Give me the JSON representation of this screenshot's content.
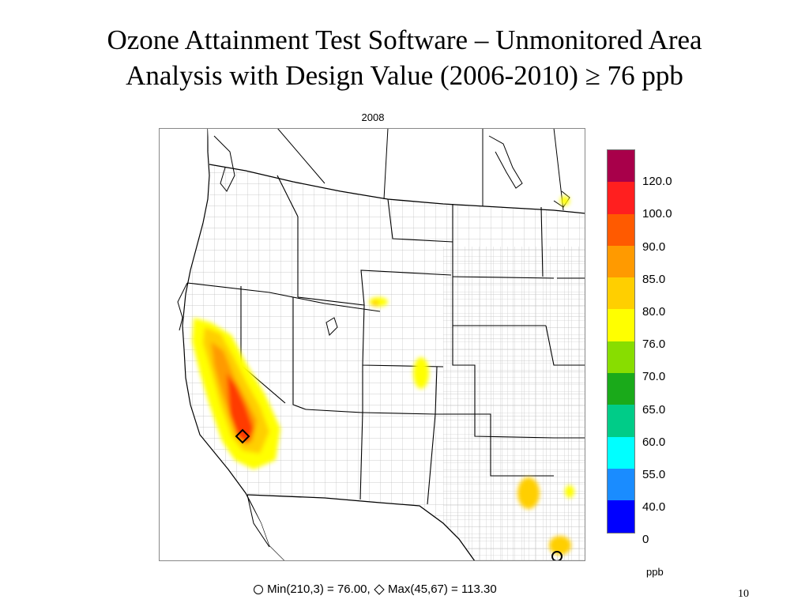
{
  "slide": {
    "title_line1": "Ozone Attainment Test Software – Unmonitored Area",
    "title_line2": "Analysis with Design Value (2006-2010) ≥ 76 ppb",
    "page_number": "10"
  },
  "map": {
    "year": "2008",
    "legend": {
      "unit": "ppb",
      "bins": [
        {
          "label": "",
          "color": "#a8004a"
        },
        {
          "label": "120.0",
          "color": "#ff1f1f"
        },
        {
          "label": "100.0",
          "color": "#ff5a00"
        },
        {
          "label": "90.0",
          "color": "#ff9a00"
        },
        {
          "label": "85.0",
          "color": "#ffcf00"
        },
        {
          "label": "80.0",
          "color": "#ffff00"
        },
        {
          "label": "76.0",
          "color": "#88dd00"
        },
        {
          "label": "70.0",
          "color": "#1aaa1a"
        },
        {
          "label": "65.0",
          "color": "#00cc88"
        },
        {
          "label": "60.0",
          "color": "#00ffff"
        },
        {
          "label": "55.0",
          "color": "#1a8cff"
        },
        {
          "label": "40.0",
          "color": "#0000ff"
        },
        {
          "label": "0",
          "color": ""
        }
      ]
    },
    "stats": {
      "min_text": "Min(210,3) = 76.00,",
      "max_text": "Max(45,67) = 113.30",
      "min_symbol": "circle-icon",
      "max_symbol": "diamond-icon"
    }
  }
}
